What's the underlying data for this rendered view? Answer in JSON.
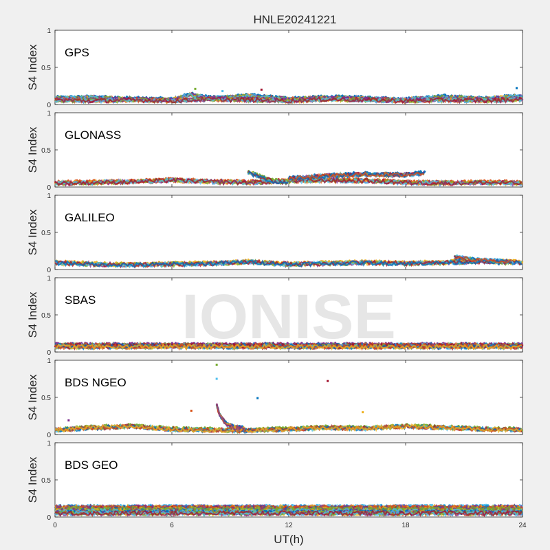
{
  "figure": {
    "title": "HNLE20241221",
    "xlabel": "UT(h)",
    "watermark": "IONISE",
    "background": "#f0f0f0"
  },
  "chart_data": {
    "type": "scatter",
    "title": "HNLE20241221",
    "xlabel": "UT(h)",
    "ylabel": "S4 Index",
    "xlim": [
      0,
      24
    ],
    "ylim": [
      0,
      1
    ],
    "xticks": [
      "0",
      "6",
      "12",
      "18",
      "24"
    ],
    "xtick_values": [
      0,
      6,
      12,
      18,
      24
    ],
    "yticks": [
      "0",
      "0.5",
      "1"
    ],
    "ytick_values": [
      0,
      0.5,
      1
    ],
    "grid": false,
    "series_colors": [
      "#0072bd",
      "#d95319",
      "#edb120",
      "#7e2f8e",
      "#77ac30",
      "#4dbeee",
      "#a2142f"
    ],
    "panels": [
      {
        "label": "GPS",
        "ylabel": "S4 Index",
        "series": [
          {
            "x": [
              0,
              2,
              4,
              6,
              7,
              8,
              10,
              12,
              14,
              16,
              18,
              20,
              22,
              24
            ],
            "y": [
              0.09,
              0.1,
              0.08,
              0.07,
              0.14,
              0.09,
              0.12,
              0.08,
              0.1,
              0.09,
              0.07,
              0.11,
              0.08,
              0.12
            ]
          },
          {
            "x": [
              0,
              2,
              4,
              6,
              8,
              10,
              12,
              14,
              16,
              18,
              20,
              22,
              24
            ],
            "y": [
              0.07,
              0.06,
              0.07,
              0.06,
              0.08,
              0.07,
              0.06,
              0.08,
              0.07,
              0.06,
              0.07,
              0.06,
              0.08
            ]
          }
        ],
        "peaks": [
          {
            "x": 7.2,
            "y": 0.21
          },
          {
            "x": 8.6,
            "y": 0.18
          },
          {
            "x": 10.6,
            "y": 0.2
          },
          {
            "x": 23.7,
            "y": 0.22
          }
        ]
      },
      {
        "label": "GLONASS",
        "ylabel": "S4 Index",
        "series": [
          {
            "x": [
              0,
              2,
              4,
              6,
              8,
              10,
              12,
              14,
              16,
              18,
              20,
              22,
              24
            ],
            "y": [
              0.06,
              0.07,
              0.08,
              0.1,
              0.08,
              0.07,
              0.09,
              0.1,
              0.09,
              0.07,
              0.06,
              0.07,
              0.06
            ]
          },
          {
            "x": [
              9.9,
              10.5,
              11,
              11.5,
              12
            ],
            "y": [
              0.2,
              0.15,
              0.1,
              0.08,
              0.07
            ]
          },
          {
            "x": [
              12,
              14,
              16,
              18,
              19
            ],
            "y": [
              0.12,
              0.16,
              0.18,
              0.17,
              0.2
            ]
          }
        ],
        "peaks": []
      },
      {
        "label": "GALILEO",
        "ylabel": "S4 Index",
        "series": [
          {
            "x": [
              0,
              2,
              4,
              6,
              8,
              10,
              12,
              14,
              16,
              18,
              20,
              22,
              24
            ],
            "y": [
              0.1,
              0.08,
              0.07,
              0.08,
              0.09,
              0.11,
              0.08,
              0.09,
              0.1,
              0.09,
              0.1,
              0.12,
              0.1
            ]
          },
          {
            "x": [
              20.5,
              21.5,
              22.5,
              23.5
            ],
            "y": [
              0.17,
              0.14,
              0.12,
              0.11
            ]
          }
        ],
        "peaks": []
      },
      {
        "label": "SBAS",
        "ylabel": "S4 Index",
        "series": [
          {
            "x": [
              0,
              24
            ],
            "y": [
              0.1,
              0.1
            ]
          },
          {
            "x": [
              0,
              24
            ],
            "y": [
              0.08,
              0.08
            ]
          }
        ],
        "peaks": []
      },
      {
        "label": "BDS NGEO",
        "ylabel": "S4 Index",
        "series": [
          {
            "x": [
              0,
              2,
              4,
              6,
              8,
              10,
              12,
              14,
              16,
              18,
              20,
              22,
              24
            ],
            "y": [
              0.07,
              0.1,
              0.12,
              0.08,
              0.07,
              0.06,
              0.08,
              0.1,
              0.09,
              0.12,
              0.1,
              0.08,
              0.07
            ]
          },
          {
            "x": [
              8.3,
              8.5,
              8.8,
              9.2,
              9.8
            ],
            "y": [
              0.4,
              0.25,
              0.15,
              0.1,
              0.08
            ]
          }
        ],
        "peaks": [
          {
            "x": 8.3,
            "y": 0.94
          },
          {
            "x": 8.3,
            "y": 0.75
          },
          {
            "x": 14,
            "y": 0.72
          },
          {
            "x": 10.4,
            "y": 0.49
          },
          {
            "x": 7,
            "y": 0.32
          },
          {
            "x": 15.8,
            "y": 0.3
          },
          {
            "x": 0.7,
            "y": 0.19
          }
        ]
      },
      {
        "label": "BDS GEO",
        "ylabel": "S4 Index",
        "series": [
          {
            "x": [
              0,
              24
            ],
            "y": [
              0.14,
              0.14
            ]
          },
          {
            "x": [
              0,
              24
            ],
            "y": [
              0.12,
              0.12
            ]
          },
          {
            "x": [
              0,
              24
            ],
            "y": [
              0.09,
              0.09
            ]
          },
          {
            "x": [
              0,
              24
            ],
            "y": [
              0.06,
              0.06
            ]
          }
        ],
        "peaks": []
      }
    ]
  }
}
